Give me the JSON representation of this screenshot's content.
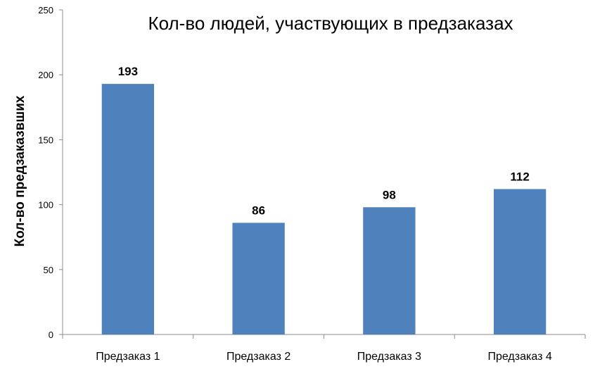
{
  "chart_data": {
    "type": "bar",
    "title": "Кол-во людей, участвующих в предзаказах",
    "xlabel": "",
    "ylabel": "Кол-во предзаказвших",
    "categories": [
      "Предзаказ 1",
      "Предзаказ 2",
      "Предзаказ 3",
      "Предзаказ 4"
    ],
    "values": [
      193,
      86,
      98,
      112
    ],
    "data_labels": [
      "193",
      "86",
      "98",
      "112"
    ],
    "ylim": [
      0,
      250
    ],
    "yticks": [
      0,
      50,
      100,
      150,
      200,
      250
    ],
    "grid": false,
    "legend": "none",
    "bar_color": "#4f81bd"
  }
}
